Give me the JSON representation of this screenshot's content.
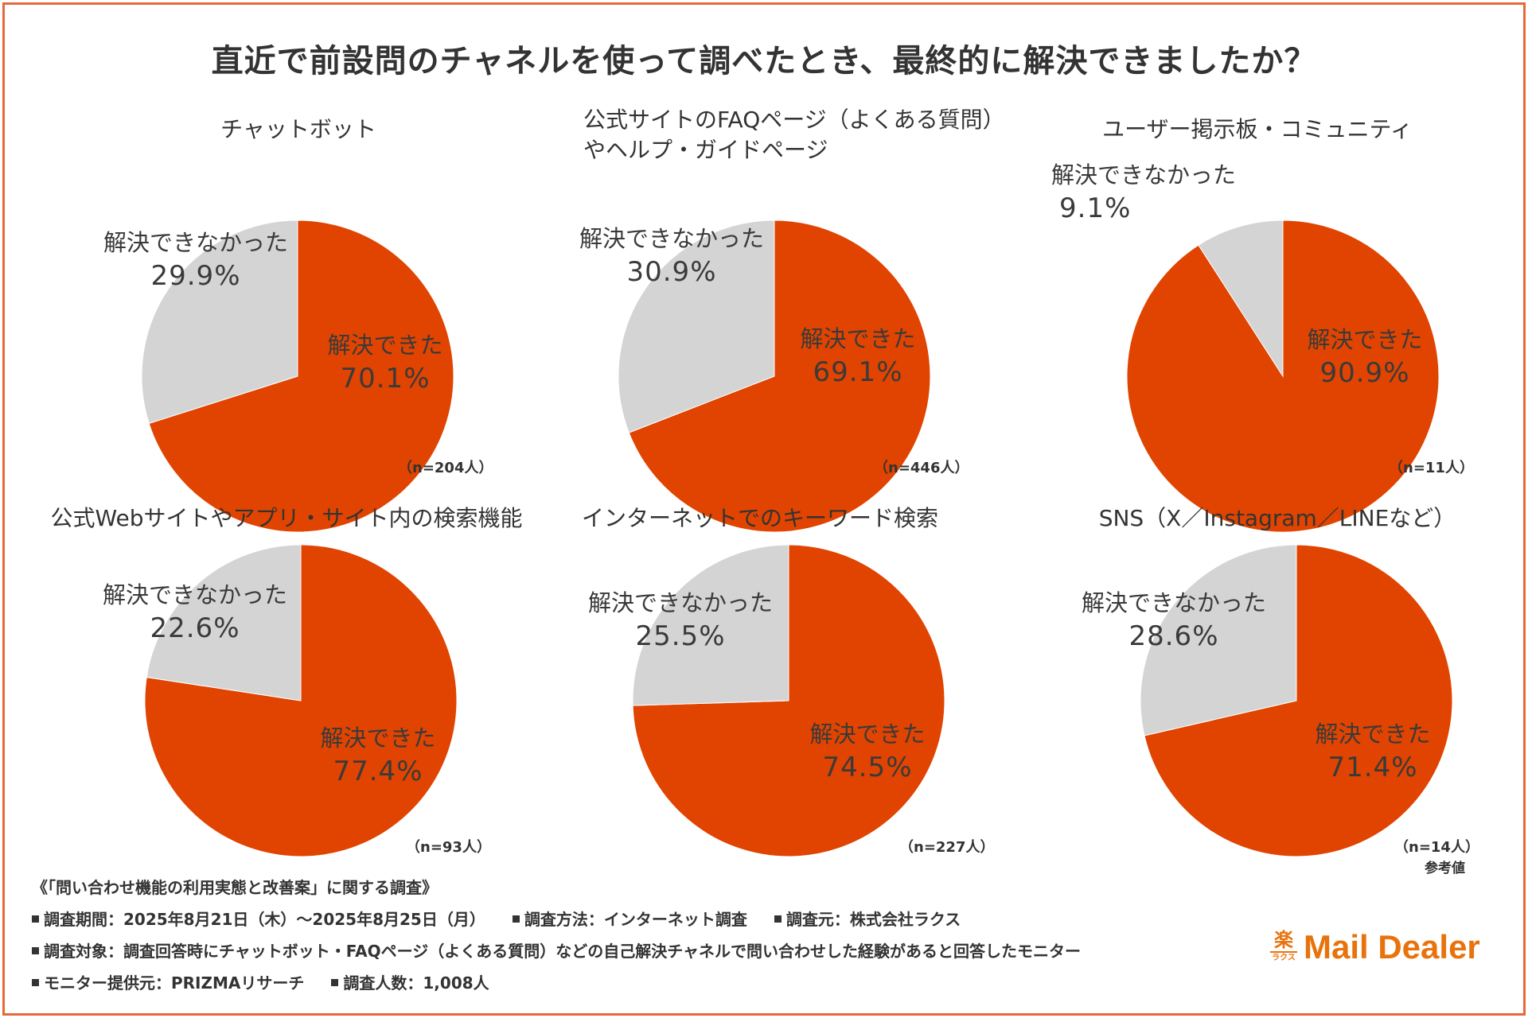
{
  "title": "直近で前設問のチャネルを使って調べたとき、最終的に解決できましたか？",
  "colors": {
    "resolved": "#e04400",
    "unresolved": "#d4d4d4",
    "frame": "#e8673a",
    "logo": "#e8730c"
  },
  "chart_data": [
    {
      "type": "pie",
      "title": "チャットボット",
      "labels": [
        "解決できた",
        "解決できなかった"
      ],
      "values": [
        70.1,
        29.9
      ],
      "value_labels": [
        "70.1%",
        "29.9%"
      ],
      "n_label": "（n=204人）"
    },
    {
      "type": "pie",
      "title": "公式サイトのFAQページ（よくある質問）やヘルプ・ガイドページ",
      "title_lines": [
        "公式サイトのFAQページ（よくある質問）",
        "やヘルプ・ガイドページ"
      ],
      "labels": [
        "解決できた",
        "解決できなかった"
      ],
      "values": [
        69.1,
        30.9
      ],
      "value_labels": [
        "69.1%",
        "30.9%"
      ],
      "n_label": "（n=446人）"
    },
    {
      "type": "pie",
      "title": "ユーザー掲示板・コミュニティ",
      "labels": [
        "解決できた",
        "解決できなかった"
      ],
      "values": [
        90.9,
        9.1
      ],
      "value_labels": [
        "90.9%",
        "9.1%"
      ],
      "n_label": "（n=11人）"
    },
    {
      "type": "pie",
      "title": "公式Webサイトやアプリ・サイト内の検索機能",
      "labels": [
        "解決できた",
        "解決できなかった"
      ],
      "values": [
        77.4,
        22.6
      ],
      "value_labels": [
        "77.4%",
        "22.6%"
      ],
      "n_label": "（n=93人）"
    },
    {
      "type": "pie",
      "title": "インターネットでのキーワード検索",
      "labels": [
        "解決できた",
        "解決できなかった"
      ],
      "values": [
        74.5,
        25.5
      ],
      "value_labels": [
        "74.5%",
        "25.5%"
      ],
      "n_label": "（n=227人）"
    },
    {
      "type": "pie",
      "title": "SNS（X／Instagram／LINEなど）",
      "labels": [
        "解決できた",
        "解決できなかった"
      ],
      "values": [
        71.4,
        28.6
      ],
      "value_labels": [
        "71.4%",
        "28.6%"
      ],
      "n_label": "（n=14人）",
      "note": "参考値"
    }
  ],
  "footer": {
    "survey_name": "《「問い合わせ機能の利用実態と改善案」に関する調査》",
    "period": "調査期間：2025年8月21日（木）～2025年8月25日（月）",
    "method": "調査方法：インターネット調査",
    "source": "調査元：株式会社ラクス",
    "target": "調査対象：調査回答時にチャットボット・FAQページ（よくある質問）などの自己解決チャネルで問い合わせした経験があると回答したモニター",
    "provider": "モニター提供元：PRIZMAリサーチ",
    "count": "調査人数：1,008人"
  },
  "logo": {
    "mark_kanji": "楽",
    "mark_kana": "ラクス",
    "text": "Mail Dealer"
  }
}
